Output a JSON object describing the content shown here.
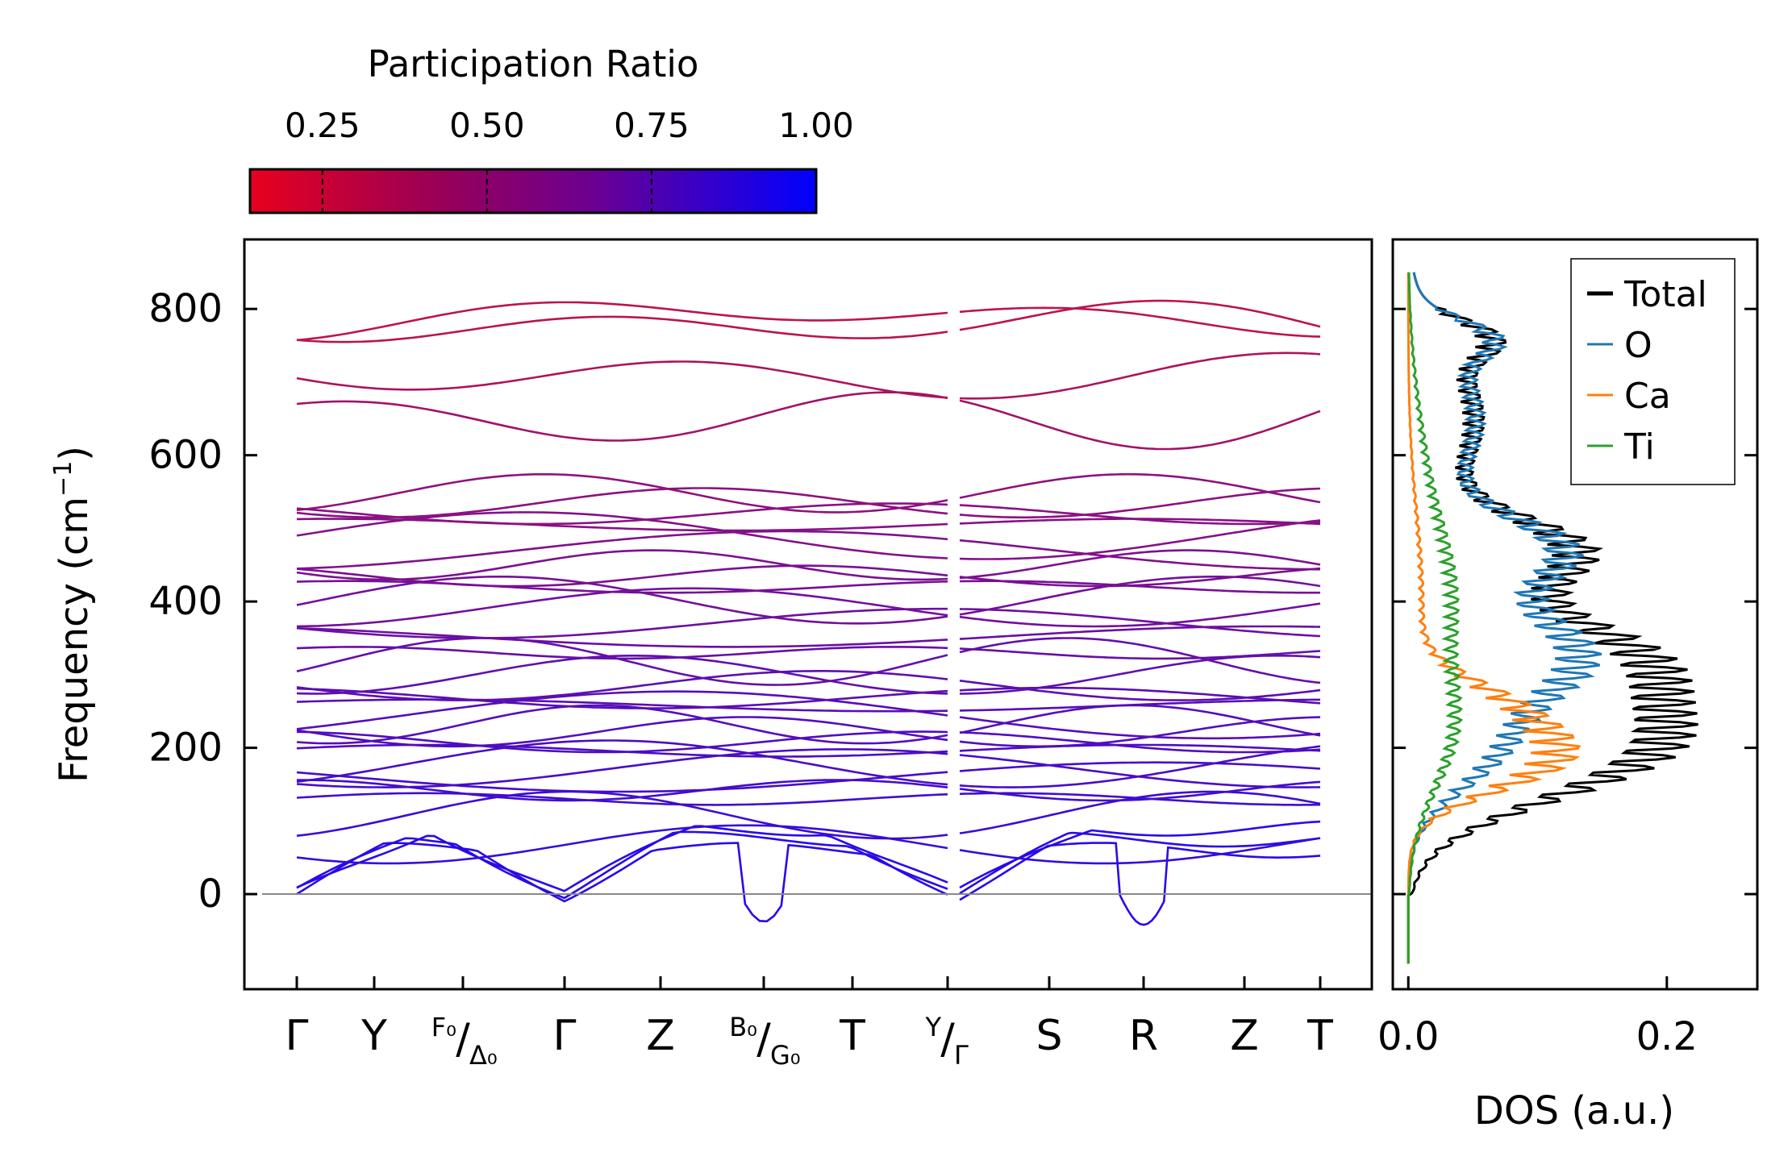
{
  "chart_data": [
    {
      "type": "line",
      "title": "",
      "subtype": "phonon-band-structure",
      "xlabel": "",
      "ylabel": "Frequency (cm",
      "ylabel_sup": "−1",
      "ylabel_close": ")",
      "ylim": [
        -130,
        895
      ],
      "yticks": [
        0,
        200,
        400,
        600,
        800
      ],
      "path_labels": [
        {
          "main": "Γ"
        },
        {
          "main": "Y"
        },
        {
          "sup": "F₀",
          "slash": "/",
          "sub": "Δ₀"
        },
        {
          "main": "Γ"
        },
        {
          "main": "Z"
        },
        {
          "sup": "B₀",
          "slash": "/",
          "sub": "G₀"
        },
        {
          "main": "T"
        },
        {
          "sup": "Y",
          "slash": "/",
          "sub": "Γ"
        },
        {
          "main": "S"
        },
        {
          "main": "R"
        },
        {
          "main": "Z"
        },
        {
          "main": "T"
        }
      ],
      "band_start_frequencies": [
        -2,
        0,
        0,
        68,
        108,
        130,
        142,
        160,
        172,
        178,
        196,
        208,
        222,
        232,
        245,
        258,
        268,
        285,
        300,
        318,
        330,
        352,
        370,
        392,
        402,
        420,
        435,
        450,
        470,
        490,
        505,
        520,
        535,
        548,
        650,
        708,
        778,
        790
      ],
      "imaginary_mode_dips": [
        {
          "segment": "B0/G0",
          "min": -38
        },
        {
          "segment": "R",
          "min": -42
        }
      ]
    },
    {
      "type": "line",
      "title": "",
      "xlabel": "DOS (a.u.)",
      "ylabel": "",
      "xlim": [
        -0.012,
        0.27
      ],
      "xticks": [
        "0.0",
        "0.2"
      ],
      "legend_position": "top-right",
      "series": [
        {
          "name": "Total",
          "color": "#000000"
        },
        {
          "name": "O",
          "color": "#1f77b4"
        },
        {
          "name": "Ca",
          "color": "#ff7f0e"
        },
        {
          "name": "Ti",
          "color": "#2ca02c"
        }
      ]
    }
  ],
  "colorbar": {
    "label": "Participation Ratio",
    "ticks": [
      "0.25",
      "0.50",
      "0.75",
      "1.00"
    ],
    "tick_values": [
      0.25,
      0.5,
      0.75,
      1.0
    ],
    "range": [
      0.14,
      1.0
    ],
    "color_low": "#e8001e",
    "color_mid": "#7a0070",
    "color_high": "#0000ff"
  }
}
